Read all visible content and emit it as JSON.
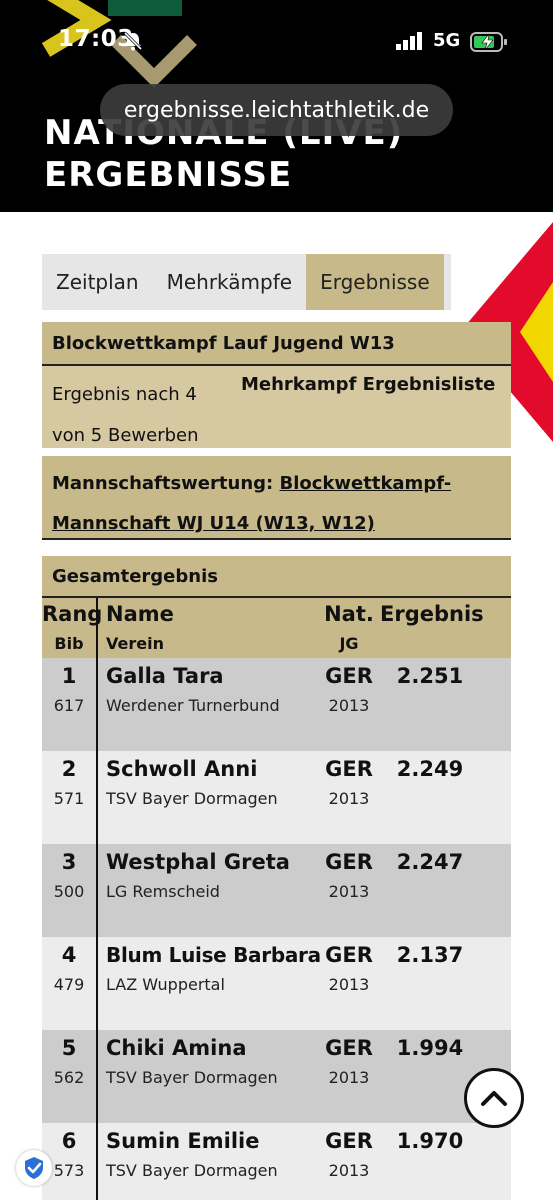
{
  "status": {
    "time": "17:03",
    "network": "5G"
  },
  "browser": {
    "url": "ergebnisse.leichtathletik.de"
  },
  "page": {
    "title_line1": "NATIONALE (LIVE)",
    "title_line2": "ERGEBNISSE"
  },
  "tabs": [
    {
      "label": "Zeitplan",
      "active": false
    },
    {
      "label": "Mehrkämpfe",
      "active": false
    },
    {
      "label": "Ergebnisse",
      "active": true
    }
  ],
  "event": {
    "title": "Blockwettkampf Lauf Jugend W13",
    "status_line1": "Ergebnis nach 4",
    "status_line2": "von 5 Bewerben",
    "list_link": "Mehrkampf Ergebnisliste"
  },
  "team": {
    "label": "Mannschaftswertung:",
    "link_line1": "Blockwettkampf-",
    "link_line2": "Mannschaft WJ U14 (W13, W12)"
  },
  "section": {
    "title": "Gesamtergebnis"
  },
  "table": {
    "headers": {
      "rank": "Rang",
      "bib": "Bib",
      "name": "Name",
      "club": "Verein",
      "nat": "Nat.",
      "jg": "JG",
      "result": "Ergebnis"
    },
    "rows": [
      {
        "rank": "1",
        "bib": "617",
        "name": "Galla Tara",
        "club": "Werdener Turnerbund",
        "nat": "GER",
        "jg": "2013",
        "result": "2.251"
      },
      {
        "rank": "2",
        "bib": "571",
        "name": "Schwoll Anni",
        "club": "TSV Bayer Dormagen",
        "nat": "GER",
        "jg": "2013",
        "result": "2.249"
      },
      {
        "rank": "3",
        "bib": "500",
        "name": "Westphal Greta",
        "club": "LG Remscheid",
        "nat": "GER",
        "jg": "2013",
        "result": "2.247"
      },
      {
        "rank": "4",
        "bib": "479",
        "name": "Blum Luise Barbara",
        "club": "LAZ Wuppertal",
        "nat": "GER",
        "jg": "2013",
        "result": "2.137"
      },
      {
        "rank": "5",
        "bib": "562",
        "name": "Chiki Amina",
        "club": "TSV Bayer Dormagen",
        "nat": "GER",
        "jg": "2013",
        "result": "1.994"
      },
      {
        "rank": "6",
        "bib": "573",
        "name": "Sumin Emilie",
        "club": "TSV Bayer Dormagen",
        "nat": "GER",
        "jg": "2013",
        "result": "1.970"
      }
    ]
  },
  "colors": {
    "accent": "#c8b98a",
    "header_bg": "#000000",
    "brand_red": "#e30b2b",
    "brand_yellow": "#f2d600"
  },
  "icons": {
    "menu": "hamburger-menu-icon",
    "scroll_top": "chevron-up-icon",
    "shield": "shield-check-icon"
  }
}
